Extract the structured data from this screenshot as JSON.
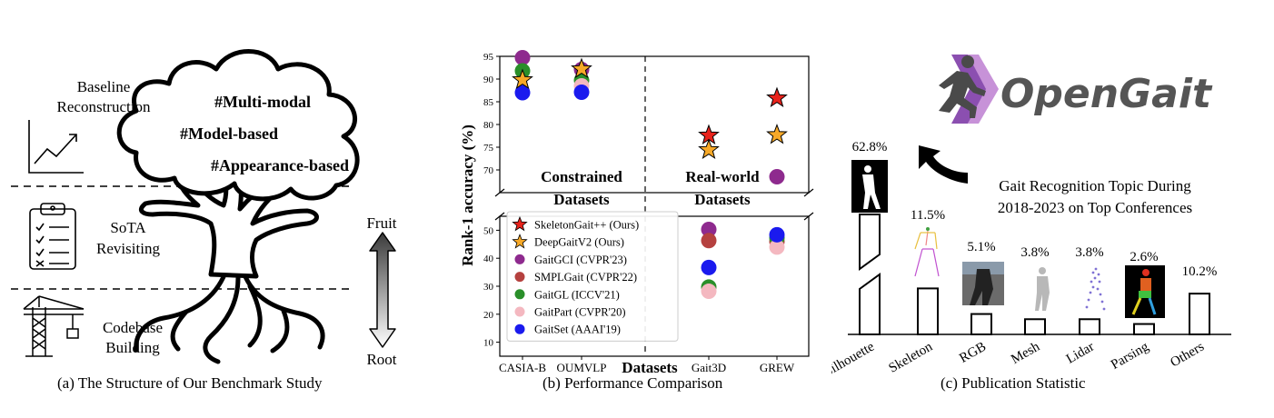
{
  "panel_a": {
    "caption": "(a) The Structure of Our Benchmark Study",
    "sections": [
      {
        "label_lines": [
          "Baseline",
          "Reconstruction"
        ],
        "icon": "trend-chart-icon"
      },
      {
        "label_lines": [
          "SoTA",
          "Revisiting"
        ],
        "icon": "checklist-clipboard-icon"
      },
      {
        "label_lines": [
          "Codebase",
          "Building"
        ],
        "icon": "crane-tower-icon"
      }
    ],
    "tags": [
      "#Multi-modal",
      "#Model-based",
      "#Appearance-based"
    ],
    "arrow_top": "Fruit",
    "arrow_bottom": "Root"
  },
  "panel_b": {
    "caption": "(b) Performance Comparison",
    "region_labels": {
      "constrained": [
        "Constrained",
        "Datasets"
      ],
      "real_world": [
        "Real-world",
        "Datasets"
      ]
    }
  },
  "panel_c": {
    "caption": "(c) Publication Statistic",
    "logo_text": "OpenGait",
    "annotation_lines": [
      "Gait Recognition Topic During",
      "2018-2023 on Top Conferences"
    ]
  },
  "chart_data": [
    {
      "type": "scatter",
      "xlabel": "Datasets",
      "ylabel": "Rank-1 accuracy (%)",
      "categories": [
        "CASIA-B",
        "OUMVLP",
        "Gait3D",
        "GREW"
      ],
      "y_axis_broken": true,
      "upper_ylim": [
        65,
        95
      ],
      "upper_yticks": [
        70,
        75,
        80,
        85,
        90,
        95
      ],
      "lower_ylim": [
        5,
        55
      ],
      "lower_yticks": [
        10,
        20,
        30,
        40,
        50
      ],
      "legend_location": "lower-left",
      "series": [
        {
          "name": "SkeletonGait++ (Ours)",
          "marker": "star",
          "color": "#e8231c",
          "values": [
            null,
            null,
            77.6,
            85.8
          ]
        },
        {
          "name": "DeepGaitV2 (Ours)",
          "marker": "star",
          "color": "#f7a928",
          "values": [
            89.8,
            92.2,
            74.4,
            77.7
          ]
        },
        {
          "name": "GaitGCI (CVPR'23)",
          "marker": "circle",
          "color": "#8e2a8e",
          "values": [
            94.7,
            92.1,
            50.3,
            68.5
          ]
        },
        {
          "name": "SMPLGait (CVPR'22)",
          "marker": "circle",
          "color": "#b5413f",
          "values": [
            null,
            null,
            46.3,
            45.9
          ]
        },
        {
          "name": "GaitGL (ICCV'21)",
          "marker": "circle",
          "color": "#2a8f2a",
          "values": [
            91.8,
            89.7,
            29.7,
            47.3
          ]
        },
        {
          "name": "GaitPart (CVPR'20)",
          "marker": "circle",
          "color": "#f4b8c0",
          "values": [
            null,
            88.5,
            28.2,
            44.0
          ]
        },
        {
          "name": "GaitSet (AAAI'19)",
          "marker": "circle",
          "color": "#1a1aee",
          "values": [
            87.0,
            87.1,
            36.7,
            48.4
          ]
        }
      ]
    },
    {
      "type": "bar",
      "categories": [
        "Silhouette",
        "Skeleton",
        "RGB",
        "Mesh",
        "Lidar",
        "Parsing",
        "Others"
      ],
      "values": [
        62.8,
        11.5,
        5.1,
        3.8,
        3.8,
        2.6,
        10.2
      ],
      "value_labels": [
        "62.8%",
        "11.5%",
        "5.1%",
        "3.8%",
        "3.8%",
        "2.6%",
        "10.2%"
      ],
      "y_axis_broken": true,
      "bar_fill": "#ffffff",
      "bar_stroke": "#000000"
    }
  ]
}
